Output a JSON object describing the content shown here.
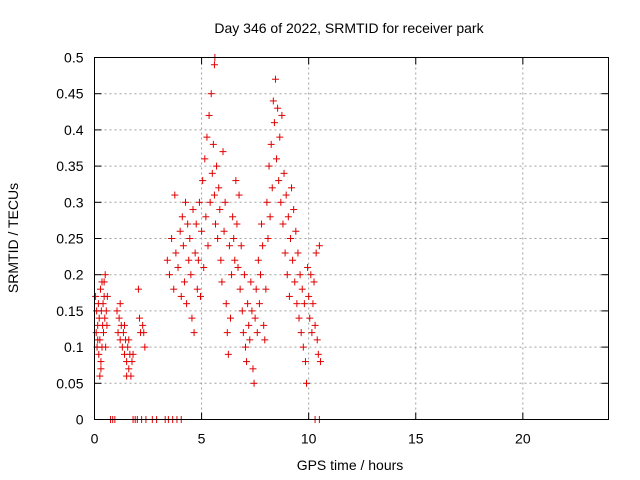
{
  "chart_data": {
    "type": "scatter",
    "title": "Day 346 of 2022, SRMTID for receiver park",
    "xlabel": "GPS time / hours",
    "ylabel": "SRMTID / TECUs",
    "xlim": [
      0,
      24
    ],
    "ylim": [
      0,
      0.5
    ],
    "xticks": [
      0,
      5,
      10,
      15,
      20
    ],
    "yticks": [
      0,
      0.05,
      0.1,
      0.15,
      0.2,
      0.25,
      0.3,
      0.35,
      0.4,
      0.45,
      0.5
    ],
    "xtick_labels": [
      "0",
      "5",
      "10",
      "15",
      "20"
    ],
    "ytick_labels": [
      "0",
      "0.05",
      "0.1",
      "0.15",
      "0.2",
      "0.25",
      "0.3",
      "0.35",
      "0.4",
      "0.45",
      "0.5"
    ],
    "grid": true,
    "marker": "+",
    "marker_color": "#e00000",
    "series": [
      {
        "name": "SRMTID",
        "points": [
          [
            0.05,
            0.17
          ],
          [
            0.08,
            0.12
          ],
          [
            0.1,
            0.15
          ],
          [
            0.12,
            0.1
          ],
          [
            0.15,
            0.13
          ],
          [
            0.18,
            0.16
          ],
          [
            0.2,
            0.09
          ],
          [
            0.22,
            0.14
          ],
          [
            0.25,
            0.11
          ],
          [
            0.28,
            0.18
          ],
          [
            0.3,
            0.08
          ],
          [
            0.32,
            0.15
          ],
          [
            0.35,
            0.19
          ],
          [
            0.38,
            0.13
          ],
          [
            0.4,
            0.16
          ],
          [
            0.42,
            0.12
          ],
          [
            0.45,
            0.17
          ],
          [
            0.48,
            0.14
          ],
          [
            0.5,
            0.2
          ],
          [
            0.52,
            0.1
          ],
          [
            0.55,
            0.15
          ],
          [
            0.58,
            0.13
          ],
          [
            0.6,
            0.17
          ],
          [
            0.3,
            0.07
          ],
          [
            0.25,
            0.06
          ],
          [
            0.45,
            0.19
          ],
          [
            0.15,
            0.11
          ],
          [
            0.35,
            0.1
          ],
          [
            1.05,
            0.15
          ],
          [
            1.1,
            0.12
          ],
          [
            1.15,
            0.14
          ],
          [
            1.2,
            0.11
          ],
          [
            1.25,
            0.13
          ],
          [
            1.3,
            0.1
          ],
          [
            1.35,
            0.12
          ],
          [
            1.4,
            0.09
          ],
          [
            1.45,
            0.11
          ],
          [
            1.5,
            0.08
          ],
          [
            1.55,
            0.1
          ],
          [
            1.6,
            0.07
          ],
          [
            1.65,
            0.09
          ],
          [
            1.7,
            0.06
          ],
          [
            1.75,
            0.08
          ],
          [
            1.5,
            0.06
          ],
          [
            1.2,
            0.16
          ],
          [
            1.4,
            0.13
          ],
          [
            1.6,
            0.11
          ],
          [
            1.8,
            0.09
          ],
          [
            2.05,
            0.18
          ],
          [
            2.1,
            0.14
          ],
          [
            2.15,
            0.12
          ],
          [
            2.25,
            0.13
          ],
          [
            2.35,
            0.1
          ],
          [
            2.3,
            0.12
          ],
          [
            3.4,
            0.22
          ],
          [
            3.5,
            0.2
          ],
          [
            3.6,
            0.25
          ],
          [
            3.7,
            0.18
          ],
          [
            3.75,
            0.31
          ],
          [
            3.8,
            0.23
          ],
          [
            3.9,
            0.21
          ],
          [
            4.0,
            0.26
          ],
          [
            4.05,
            0.17
          ],
          [
            4.1,
            0.28
          ],
          [
            4.15,
            0.24
          ],
          [
            4.2,
            0.19
          ],
          [
            4.25,
            0.3
          ],
          [
            4.3,
            0.16
          ],
          [
            4.35,
            0.27
          ],
          [
            4.4,
            0.22
          ],
          [
            4.45,
            0.25
          ],
          [
            4.5,
            0.2
          ],
          [
            4.55,
            0.14
          ],
          [
            4.6,
            0.29
          ],
          [
            4.65,
            0.12
          ],
          [
            4.7,
            0.23
          ],
          [
            4.75,
            0.27
          ],
          [
            4.8,
            0.18
          ],
          [
            4.85,
            0.22
          ],
          [
            4.9,
            0.3
          ],
          [
            4.95,
            0.17
          ],
          [
            5.0,
            0.26
          ],
          [
            5.05,
            0.33
          ],
          [
            5.1,
            0.21
          ],
          [
            5.15,
            0.36
          ],
          [
            5.2,
            0.28
          ],
          [
            5.25,
            0.39
          ],
          [
            5.3,
            0.24
          ],
          [
            5.35,
            0.42
          ],
          [
            5.4,
            0.3
          ],
          [
            5.45,
            0.45
          ],
          [
            5.5,
            0.34
          ],
          [
            5.55,
            0.38
          ],
          [
            5.6,
            0.31
          ],
          [
            5.65,
            0.27
          ],
          [
            5.6,
            0.49
          ],
          [
            5.62,
            0.5
          ],
          [
            5.7,
            0.35
          ],
          [
            5.75,
            0.25
          ],
          [
            5.8,
            0.32
          ],
          [
            5.85,
            0.29
          ],
          [
            5.9,
            0.22
          ],
          [
            5.95,
            0.19
          ],
          [
            6.0,
            0.37
          ],
          [
            6.05,
            0.26
          ],
          [
            6.1,
            0.3
          ],
          [
            6.15,
            0.16
          ],
          [
            6.2,
            0.12
          ],
          [
            6.25,
            0.09
          ],
          [
            6.3,
            0.24
          ],
          [
            6.35,
            0.14
          ],
          [
            6.4,
            0.2
          ],
          [
            6.45,
            0.28
          ],
          [
            6.5,
            0.25
          ],
          [
            6.55,
            0.22
          ],
          [
            6.6,
            0.33
          ],
          [
            6.65,
            0.27
          ],
          [
            6.7,
            0.21
          ],
          [
            6.75,
            0.31
          ],
          [
            6.8,
            0.18
          ],
          [
            6.85,
            0.24
          ],
          [
            6.9,
            0.15
          ],
          [
            6.95,
            0.12
          ],
          [
            7.0,
            0.2
          ],
          [
            7.05,
            0.1
          ],
          [
            7.1,
            0.08
          ],
          [
            7.15,
            0.16
          ],
          [
            7.2,
            0.13
          ],
          [
            7.25,
            0.11
          ],
          [
            7.3,
            0.19
          ],
          [
            7.35,
            0.15
          ],
          [
            7.4,
            0.07
          ],
          [
            7.45,
            0.05
          ],
          [
            7.5,
            0.14
          ],
          [
            7.55,
            0.18
          ],
          [
            7.6,
            0.12
          ],
          [
            7.65,
            0.22
          ],
          [
            7.7,
            0.16
          ],
          [
            7.75,
            0.2
          ],
          [
            7.8,
            0.27
          ],
          [
            7.85,
            0.24
          ],
          [
            7.9,
            0.13
          ],
          [
            7.95,
            0.11
          ],
          [
            8.0,
            0.18
          ],
          [
            8.05,
            0.3
          ],
          [
            8.1,
            0.25
          ],
          [
            8.15,
            0.35
          ],
          [
            8.2,
            0.28
          ],
          [
            8.25,
            0.38
          ],
          [
            8.3,
            0.32
          ],
          [
            8.35,
            0.44
          ],
          [
            8.4,
            0.41
          ],
          [
            8.45,
            0.47
          ],
          [
            8.5,
            0.36
          ],
          [
            8.55,
            0.43
          ],
          [
            8.6,
            0.33
          ],
          [
            8.65,
            0.39
          ],
          [
            8.7,
            0.3
          ],
          [
            8.75,
            0.42
          ],
          [
            8.8,
            0.27
          ],
          [
            8.85,
            0.34
          ],
          [
            8.9,
            0.23
          ],
          [
            8.95,
            0.31
          ],
          [
            9.0,
            0.2
          ],
          [
            9.05,
            0.28
          ],
          [
            9.1,
            0.17
          ],
          [
            9.15,
            0.25
          ],
          [
            9.2,
            0.32
          ],
          [
            9.25,
            0.22
          ],
          [
            9.3,
            0.29
          ],
          [
            9.35,
            0.19
          ],
          [
            9.4,
            0.26
          ],
          [
            9.45,
            0.16
          ],
          [
            9.5,
            0.23
          ],
          [
            9.55,
            0.14
          ],
          [
            9.6,
            0.2
          ],
          [
            9.65,
            0.12
          ],
          [
            9.7,
            0.18
          ],
          [
            9.75,
            0.1
          ],
          [
            9.8,
            0.16
          ],
          [
            9.85,
            0.08
          ],
          [
            9.9,
            0.05
          ],
          [
            9.95,
            0.21
          ],
          [
            10.0,
            0.17
          ],
          [
            10.05,
            0.14
          ],
          [
            10.1,
            0.2
          ],
          [
            10.15,
            0.12
          ],
          [
            10.2,
            0.16
          ],
          [
            10.25,
            0.19
          ],
          [
            10.3,
            0.13
          ],
          [
            10.35,
            0.23
          ],
          [
            10.4,
            0.11
          ],
          [
            10.45,
            0.09
          ],
          [
            10.5,
            0.24
          ],
          [
            10.55,
            0.08
          ]
        ],
        "zero_points": [
          0.75,
          0.85,
          0.95,
          1.8,
          1.9,
          2.0,
          2.2,
          2.4,
          2.7,
          2.9,
          3.3,
          3.45,
          3.65,
          3.85,
          4.05,
          10.3,
          10.5
        ]
      }
    ]
  }
}
